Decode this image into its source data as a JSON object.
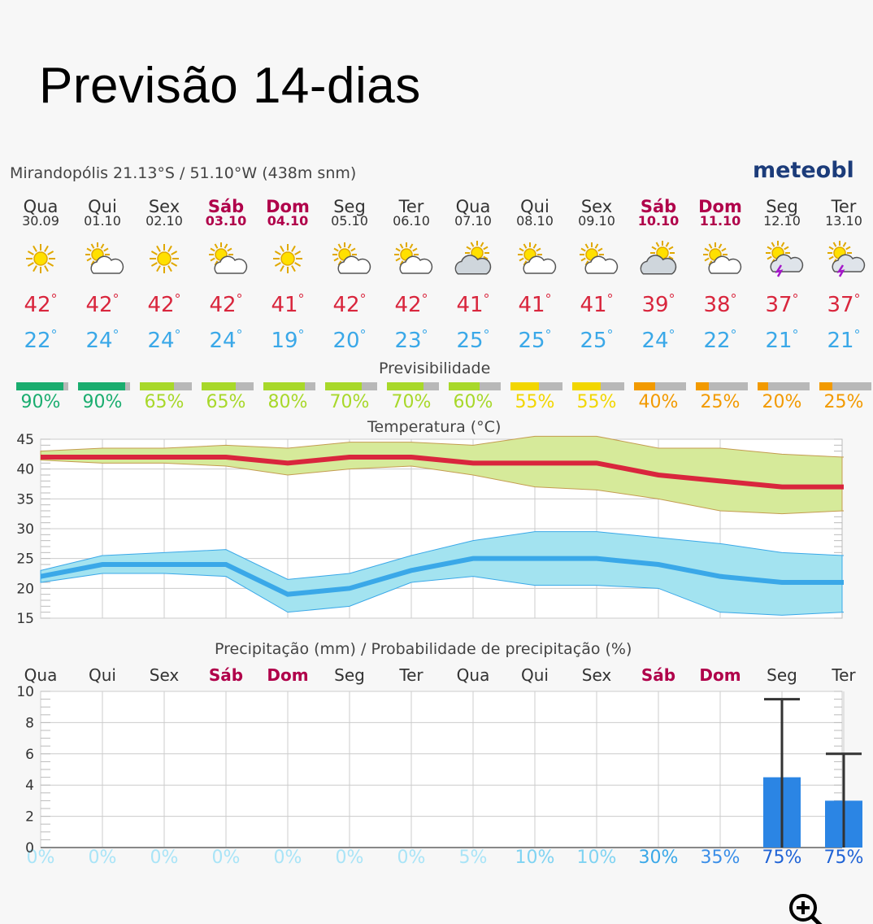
{
  "page": {
    "title": "Previsão 14-dias"
  },
  "header": {
    "location": "Mirandopólis  21.13°S / 51.10°W (438m snm)",
    "logo": "meteobl"
  },
  "days": [
    {
      "name": "Qua",
      "date": "30.09",
      "weekend": false,
      "icon": "sun-icon",
      "max": "42",
      "min": "22",
      "prev": "90%",
      "prev_frac": 0.9,
      "prev_color": "#1aad6f",
      "pday": "Qua",
      "prob": "0%",
      "prob_color": "#a9e4f7"
    },
    {
      "name": "Qui",
      "date": "01.10",
      "weekend": false,
      "icon": "sun-cloud-icon",
      "max": "42",
      "min": "24",
      "prev": "90%",
      "prev_frac": 0.9,
      "prev_color": "#1aad6f",
      "pday": "Qui",
      "prob": "0%",
      "prob_color": "#a9e4f7"
    },
    {
      "name": "Sex",
      "date": "02.10",
      "weekend": false,
      "icon": "sun-icon",
      "max": "42",
      "min": "24",
      "prev": "65%",
      "prev_frac": 0.65,
      "prev_color": "#a8d82a",
      "pday": "Sex",
      "prob": "0%",
      "prob_color": "#a9e4f7"
    },
    {
      "name": "Sáb",
      "date": "03.10",
      "weekend": true,
      "icon": "sun-cloud-icon",
      "max": "42",
      "min": "24",
      "prev": "65%",
      "prev_frac": 0.65,
      "prev_color": "#a8d82a",
      "pday": "Sáb",
      "prob": "0%",
      "prob_color": "#a9e4f7"
    },
    {
      "name": "Dom",
      "date": "04.10",
      "weekend": true,
      "icon": "sun-icon",
      "max": "41",
      "min": "19",
      "prev": "80%",
      "prev_frac": 0.8,
      "prev_color": "#a8d82a",
      "pday": "Dom",
      "prob": "0%",
      "prob_color": "#a9e4f7"
    },
    {
      "name": "Seg",
      "date": "05.10",
      "weekend": false,
      "icon": "sun-cloud-icon",
      "max": "42",
      "min": "20",
      "prev": "70%",
      "prev_frac": 0.7,
      "prev_color": "#a8d82a",
      "pday": "Seg",
      "prob": "0%",
      "prob_color": "#a9e4f7"
    },
    {
      "name": "Ter",
      "date": "06.10",
      "weekend": false,
      "icon": "sun-cloud-icon",
      "max": "42",
      "min": "23",
      "prev": "70%",
      "prev_frac": 0.7,
      "prev_color": "#a8d82a",
      "pday": "Ter",
      "prob": "0%",
      "prob_color": "#a9e4f7"
    },
    {
      "name": "Qua",
      "date": "07.10",
      "weekend": false,
      "icon": "cloud-sun-icon",
      "max": "41",
      "min": "25",
      "prev": "60%",
      "prev_frac": 0.6,
      "prev_color": "#a8d82a",
      "pday": "Qua",
      "prob": "5%",
      "prob_color": "#a9e4f7"
    },
    {
      "name": "Qui",
      "date": "08.10",
      "weekend": false,
      "icon": "sun-cloud-icon",
      "max": "41",
      "min": "25",
      "prev": "55%",
      "prev_frac": 0.55,
      "prev_color": "#f2d600",
      "pday": "Qui",
      "prob": "10%",
      "prob_color": "#7fd3f2"
    },
    {
      "name": "Sex",
      "date": "09.10",
      "weekend": false,
      "icon": "sun-cloud-icon",
      "max": "41",
      "min": "25",
      "prev": "55%",
      "prev_frac": 0.55,
      "prev_color": "#f2d600",
      "pday": "Sex",
      "prob": "10%",
      "prob_color": "#7fd3f2"
    },
    {
      "name": "Sáb",
      "date": "10.10",
      "weekend": true,
      "icon": "cloud-sun-icon",
      "max": "39",
      "min": "24",
      "prev": "40%",
      "prev_frac": 0.4,
      "prev_color": "#f29a00",
      "pday": "Sáb",
      "prob": "30%",
      "prob_color": "#3aa8e8"
    },
    {
      "name": "Dom",
      "date": "11.10",
      "weekend": true,
      "icon": "sun-cloud-icon",
      "max": "38",
      "min": "22",
      "prev": "25%",
      "prev_frac": 0.25,
      "prev_color": "#f29a00",
      "pday": "Dom",
      "prob": "35%",
      "prob_color": "#3a8ee8"
    },
    {
      "name": "Seg",
      "date": "12.10",
      "weekend": false,
      "icon": "thunder-icon",
      "max": "37",
      "min": "21",
      "prev": "20%",
      "prev_frac": 0.2,
      "prev_color": "#f29a00",
      "pday": "Seg",
      "prob": "75%",
      "prob_color": "#1f63d6"
    },
    {
      "name": "Ter",
      "date": "13.10",
      "weekend": false,
      "icon": "thunder-icon",
      "max": "37",
      "min": "21",
      "prev": "25%",
      "prev_frac": 0.25,
      "prev_color": "#f29a00",
      "pday": "Ter",
      "prob": "75%",
      "prob_color": "#1f63d6"
    }
  ],
  "labels": {
    "previsibilidade": "Previsibilidade",
    "temperatura": "Temperatura (°C)",
    "precipitacao": "Precipitação (mm) / Probabilidade de precipitação (%)"
  },
  "colors": {
    "max_line": "#d9263d",
    "max_band": "#d6ea9a",
    "min_line": "#3aa8e8",
    "min_band": "#a3e3f0",
    "precip_bar": "#2b85e4"
  },
  "chart_data": [
    {
      "type": "line",
      "title": "Temperatura (°C)",
      "ylim": [
        15,
        45
      ],
      "yticks": [
        "45",
        "40",
        "35",
        "30",
        "25",
        "20",
        "15"
      ],
      "grid": true,
      "series": [
        {
          "values": [
            42,
            42,
            42,
            42,
            41,
            42,
            42,
            41,
            41,
            41,
            39,
            38,
            37,
            37
          ],
          "band_low": [
            41.5,
            41,
            41,
            40.5,
            39,
            40,
            40.5,
            39,
            37,
            36.5,
            35,
            33,
            32.5,
            33
          ],
          "band_high": [
            43,
            43.5,
            43.5,
            44,
            43.5,
            44.5,
            44.5,
            44,
            45.5,
            45.5,
            43.5,
            43.5,
            42.5,
            42
          ]
        },
        {
          "values": [
            22,
            24,
            24,
            24,
            19,
            20,
            23,
            25,
            25,
            25,
            24,
            22,
            21,
            21
          ],
          "band_low": [
            21,
            22.5,
            22.5,
            22,
            16,
            17,
            21,
            22,
            20.5,
            20.5,
            20,
            16,
            15.5,
            16
          ],
          "band_high": [
            23,
            25.5,
            26,
            26.5,
            21.5,
            22.5,
            25.5,
            28,
            29.5,
            29.5,
            28.5,
            27.5,
            26,
            25.5
          ]
        }
      ]
    },
    {
      "type": "bar",
      "title": "Precipitação (mm) / Probabilidade de precipitação (%)",
      "ylim": [
        0,
        10
      ],
      "yticks": [
        "10",
        "8",
        "6",
        "4",
        "2",
        "0"
      ],
      "grid": true,
      "categories": [
        "Qua",
        "Qui",
        "Sex",
        "Sáb",
        "Dom",
        "Seg",
        "Ter",
        "Qua",
        "Qui",
        "Sex",
        "Sáb",
        "Dom",
        "Seg",
        "Ter"
      ],
      "values": [
        0,
        0,
        0,
        0,
        0,
        0,
        0,
        0,
        0,
        0,
        0,
        0,
        4.5,
        3
      ],
      "error_high": [
        0,
        0,
        0,
        0,
        0,
        0,
        0,
        0,
        0,
        0,
        0,
        0,
        9.5,
        6
      ],
      "probability": [
        "0%",
        "0%",
        "0%",
        "0%",
        "0%",
        "0%",
        "0%",
        "5%",
        "10%",
        "10%",
        "30%",
        "35%",
        "75%",
        "75%"
      ]
    }
  ]
}
